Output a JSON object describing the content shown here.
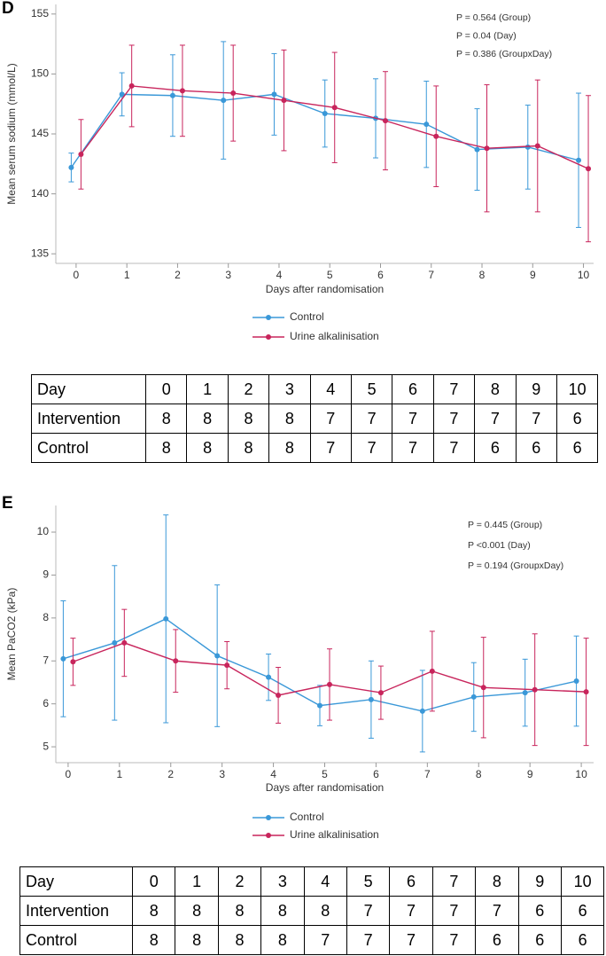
{
  "chart_data": [
    {
      "type": "line",
      "panel": "D",
      "x_label": "Days after randomisation",
      "y_label": "Mean serum sodium (mmol/L)",
      "x": [
        0,
        1,
        2,
        3,
        4,
        5,
        6,
        7,
        8,
        9,
        10
      ],
      "xlim": [
        -0.4,
        10.2
      ],
      "xticks": [
        0,
        1,
        2,
        3,
        4,
        5,
        6,
        7,
        8,
        9,
        10
      ],
      "ylim": [
        134.2,
        155.8
      ],
      "yticks": [
        135,
        140,
        145,
        150,
        155
      ],
      "annotations": [
        "P = 0.564 (Group)",
        "P = 0.04 (Day)",
        "P = 0.386 (GroupxDay)"
      ],
      "legend": "below",
      "series": [
        {
          "name": "Control",
          "color": "#3a98d8",
          "values": [
            142.2,
            148.3,
            148.2,
            147.8,
            148.3,
            146.7,
            146.3,
            145.8,
            143.7,
            143.9,
            142.8
          ],
          "errors": [
            1.2,
            1.8,
            3.4,
            4.9,
            3.4,
            2.8,
            3.3,
            3.6,
            3.4,
            3.5,
            5.6
          ]
        },
        {
          "name": "Urine alkalinisation",
          "color": "#c8255c",
          "values": [
            143.3,
            149.0,
            148.6,
            148.4,
            147.8,
            147.2,
            146.1,
            144.8,
            143.8,
            144.0,
            142.1
          ],
          "errors": [
            2.9,
            3.4,
            3.8,
            4.0,
            4.2,
            4.6,
            4.1,
            4.2,
            5.3,
            5.5,
            6.1
          ]
        }
      ]
    },
    {
      "type": "line",
      "panel": "E",
      "x_label": "Days after randomisation",
      "y_label": "Mean PaCO2 (kPa)",
      "x": [
        0,
        1,
        2,
        3,
        4,
        5,
        6,
        7,
        8,
        9,
        10
      ],
      "xlim": [
        -0.24,
        10.24
      ],
      "xticks": [
        0,
        1,
        2,
        3,
        4,
        5,
        6,
        7,
        8,
        9,
        10
      ],
      "ylim": [
        4.63,
        10.62
      ],
      "yticks": [
        5,
        6,
        7,
        8,
        9,
        10
      ],
      "annotations": [
        "P = 0.445 (Group)",
        "P <0.001 (Day)",
        "P = 0.194 (GroupxDay)"
      ],
      "legend": "below",
      "series": [
        {
          "name": "Control",
          "color": "#3a98d8",
          "values": [
            7.05,
            7.42,
            7.98,
            7.12,
            6.62,
            5.96,
            6.1,
            5.83,
            6.16,
            6.26,
            6.53
          ],
          "errors": [
            1.35,
            1.8,
            2.42,
            1.65,
            0.54,
            0.47,
            0.9,
            0.95,
            0.8,
            0.78,
            1.05
          ]
        },
        {
          "name": "Urine alkalinisation",
          "color": "#c8255c",
          "values": [
            6.98,
            7.42,
            7.0,
            6.9,
            6.2,
            6.45,
            6.26,
            6.76,
            6.38,
            6.33,
            6.28
          ],
          "errors": [
            0.55,
            0.78,
            0.73,
            0.55,
            0.65,
            0.83,
            0.62,
            0.93,
            1.17,
            1.3,
            1.25
          ]
        }
      ]
    }
  ],
  "tables": [
    {
      "rows": [
        [
          "Day",
          0,
          1,
          2,
          3,
          4,
          5,
          6,
          7,
          8,
          9,
          10
        ],
        [
          "Intervention",
          8,
          8,
          8,
          8,
          7,
          7,
          7,
          7,
          7,
          7,
          6
        ],
        [
          "Control",
          8,
          8,
          8,
          8,
          7,
          7,
          7,
          7,
          6,
          6,
          6
        ]
      ]
    },
    {
      "rows": [
        [
          "Day",
          0,
          1,
          2,
          3,
          4,
          5,
          6,
          7,
          8,
          9,
          10
        ],
        [
          "Intervention",
          8,
          8,
          8,
          8,
          8,
          7,
          7,
          7,
          7,
          6,
          6
        ],
        [
          "Control",
          8,
          8,
          8,
          8,
          7,
          7,
          7,
          7,
          6,
          6,
          6
        ]
      ]
    }
  ]
}
